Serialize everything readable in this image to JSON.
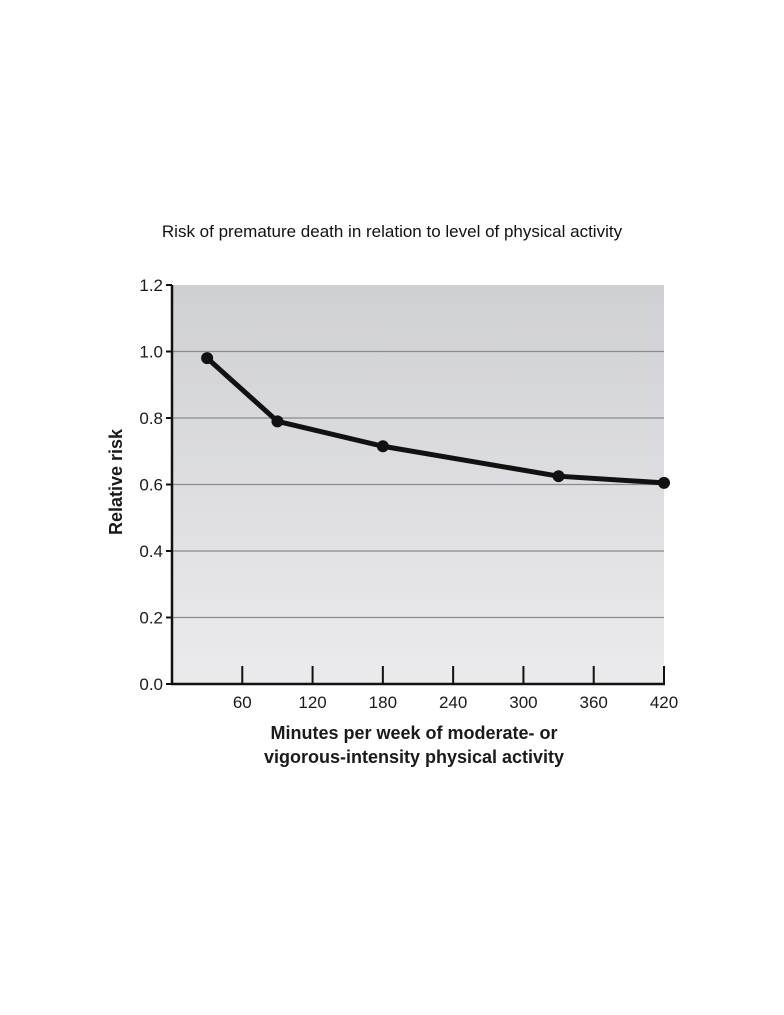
{
  "chart_data": {
    "type": "line",
    "title": "Risk of premature death in relation to level of physical activity",
    "xlabel_lines": [
      "Minutes per week of moderate- or",
      "vigorous-intensity physical activity"
    ],
    "ylabel": "Relative risk",
    "xlim": [
      0,
      420
    ],
    "ylim": [
      0,
      1.2
    ],
    "x_ticks": [
      60,
      120,
      180,
      240,
      300,
      360,
      420
    ],
    "y_ticks": [
      0.0,
      0.2,
      0.4,
      0.6,
      0.8,
      1.0,
      1.2
    ],
    "y_tick_labels": [
      "0.0",
      "0.2",
      "0.4",
      "0.6",
      "0.8",
      "1.0",
      "1.2"
    ],
    "grid": "horizontal",
    "series": [
      {
        "x": [
          30,
          90,
          180,
          330,
          420
        ],
        "y": [
          0.98,
          0.79,
          0.715,
          0.625,
          0.605
        ]
      }
    ],
    "colors": {
      "plot_bg_top": "#cfd0d4",
      "plot_bg_bottom": "#ebebed",
      "grid": "#8a8a8a",
      "line": "#111111"
    }
  }
}
